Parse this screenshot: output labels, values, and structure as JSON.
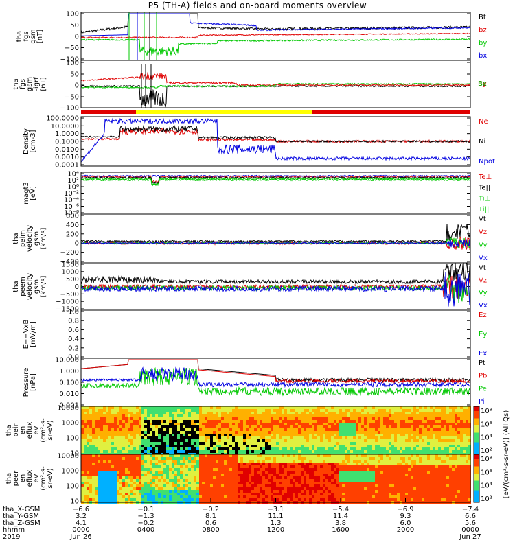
{
  "title": "P5 (TH-A) fields and on-board moments overview",
  "colors": {
    "black": "#000000",
    "red": "#e00000",
    "green": "#00c800",
    "blue": "#0000e0",
    "yellow": "#ffff00"
  },
  "chart_data": [
    {
      "type": "line",
      "id": "fgs_gsm",
      "ylabel_lines": [
        "tha",
        "fgs",
        "gsm",
        "[nT]"
      ],
      "yticks": [
        "100",
        "50",
        "0",
        "−50",
        "−100"
      ],
      "ylim": [
        -100,
        100
      ],
      "series": [
        {
          "name": "Bt",
          "color": "#000000"
        },
        {
          "name": "bz",
          "color": "#e00000"
        },
        {
          "name": "by",
          "color": "#00c800"
        },
        {
          "name": "bx",
          "color": "#0000e0"
        }
      ]
    },
    {
      "type": "line",
      "id": "fgs_gsm_igrf",
      "ylabel_lines": [
        "tha",
        "fgs",
        "gsm",
        "-igrf",
        "[nT]"
      ],
      "yticks": [
        "100",
        "50",
        "0",
        "−50",
        "−100"
      ],
      "ylim": [
        -120,
        100
      ],
      "series": [
        {
          "name": "Bz",
          "color": "#000000"
        },
        {
          "name": "By",
          "color": "#e00000"
        },
        {
          "name": "Bx",
          "color": "#00c800"
        }
      ]
    },
    {
      "type": "line",
      "id": "density",
      "ylabel_lines": [
        "Density",
        "[cm-3]"
      ],
      "yticks": [
        "100.0000",
        "10.0000",
        "1.0000",
        "0.1000",
        "0.0100",
        "0.0010",
        "0.0001"
      ],
      "series": [
        {
          "name": "Ne",
          "color": "#e00000"
        },
        {
          "name": "Ni",
          "color": "#000000"
        },
        {
          "name": "Npot",
          "color": "#0000e0"
        }
      ]
    },
    {
      "type": "line",
      "id": "temperature",
      "ylabel_lines": [
        "magt3",
        "[eV]"
      ],
      "yticks": [
        "10⁴",
        "10²",
        "10⁰",
        "10⁻²",
        "10⁻⁴",
        "10⁻⁶",
        "10⁻⁸"
      ],
      "series": [
        {
          "name": "Te⊥",
          "color": "#e00000"
        },
        {
          "name": "Te||",
          "color": "#000000"
        },
        {
          "name": "Ti⊥",
          "color": "#00c800"
        },
        {
          "name": "Ti||",
          "color": "#00c800"
        }
      ]
    },
    {
      "type": "line",
      "id": "peim_velocity",
      "ylabel_lines": [
        "tha",
        "peim",
        "velocity",
        "gsm",
        "[km/s]"
      ],
      "yticks": [
        "600",
        "400",
        "200",
        "0",
        "−200",
        "−400"
      ],
      "ylim": [
        -400,
        600
      ],
      "series": [
        {
          "name": "Vt",
          "color": "#000000"
        },
        {
          "name": "Vz",
          "color": "#e00000"
        },
        {
          "name": "Vy",
          "color": "#00c800"
        },
        {
          "name": "Vx",
          "color": "#0000e0"
        }
      ]
    },
    {
      "type": "line",
      "id": "peem_velocity",
      "ylabel_lines": [
        "tha",
        "peem",
        "velocity",
        "gsm",
        "[km/s]"
      ],
      "yticks": [
        "1500",
        "1000",
        "500",
        "0",
        "−500",
        "−1000",
        "−1500"
      ],
      "ylim": [
        -1500,
        1500
      ],
      "series": [
        {
          "name": "Vt",
          "color": "#000000"
        },
        {
          "name": "Vz",
          "color": "#e00000"
        },
        {
          "name": "Vy",
          "color": "#00c800"
        },
        {
          "name": "Vx",
          "color": "#0000e0"
        }
      ]
    },
    {
      "type": "line",
      "id": "efield",
      "ylabel_lines": [
        "E=−VxB",
        "[mV/m]"
      ],
      "yticks": [
        "1.0",
        "0.8",
        "0.6",
        "0.4",
        "0.2",
        "0.0"
      ],
      "ylim": [
        0,
        1
      ],
      "series": [
        {
          "name": "Ez",
          "color": "#e00000"
        },
        {
          "name": "Ey",
          "color": "#00c800"
        },
        {
          "name": "Ex",
          "color": "#0000e0"
        }
      ]
    },
    {
      "type": "line",
      "id": "pressure",
      "ylabel_lines": [
        "Pressure",
        "[nPa]"
      ],
      "yticks": [
        "10.000",
        "1.000",
        "0.100",
        "0.010",
        "0.001"
      ],
      "series": [
        {
          "name": "Pt",
          "color": "#000000"
        },
        {
          "name": "Pb",
          "color": "#e00000"
        },
        {
          "name": "Pe",
          "color": "#00c800"
        },
        {
          "name": "Pi",
          "color": "#0000e0"
        }
      ]
    },
    {
      "type": "heatmap",
      "id": "peir_spec",
      "ylabel_lines": [
        "tha",
        "peir",
        "en",
        "eflux",
        "eV",
        "(cm²-s-",
        "sr-eV)"
      ],
      "yticks": [
        "10000",
        "1000",
        "100",
        "10"
      ],
      "colorbar_ticks": [
        "10⁸",
        "10⁶",
        "10⁴",
        "10²"
      ]
    },
    {
      "type": "heatmap",
      "id": "peer_spec",
      "ylabel_lines": [
        "tha",
        "peer",
        "en",
        "eflux",
        "eV",
        "(cm²-s-",
        "sr-eV)"
      ],
      "yticks": [
        "10000",
        "1000",
        "100",
        "10"
      ],
      "colorbar_ticks": [
        "10⁸",
        "10⁶",
        "10⁴",
        "10²"
      ]
    }
  ],
  "colorbar_label": "[eV/(cm²-s-sr-eV)] (All Qs)",
  "xaxis": {
    "rows": [
      {
        "label": "tha_X-GSM",
        "values": [
          "−6.6",
          "−0.1",
          "−0.2",
          "−3.1",
          "−5.4",
          "−6.9",
          "−7.4"
        ]
      },
      {
        "label": "tha_Y-GSM",
        "values": [
          "3.2",
          "−1.3",
          "8.1",
          "11.1",
          "11.4",
          "9.3",
          "6.6"
        ]
      },
      {
        "label": "tha_Z-GSM",
        "values": [
          "4.1",
          "−0.2",
          "0.6",
          "1.3",
          "3.8",
          "6.0",
          "5.6"
        ]
      },
      {
        "label": "hhmm",
        "values": [
          "0000",
          "0400",
          "0800",
          "1200",
          "1600",
          "2000",
          "0000"
        ]
      },
      {
        "label": "2019",
        "values": [
          "Jun 26",
          "",
          "",
          "",
          "",
          "",
          "Jun 27"
        ]
      }
    ]
  }
}
